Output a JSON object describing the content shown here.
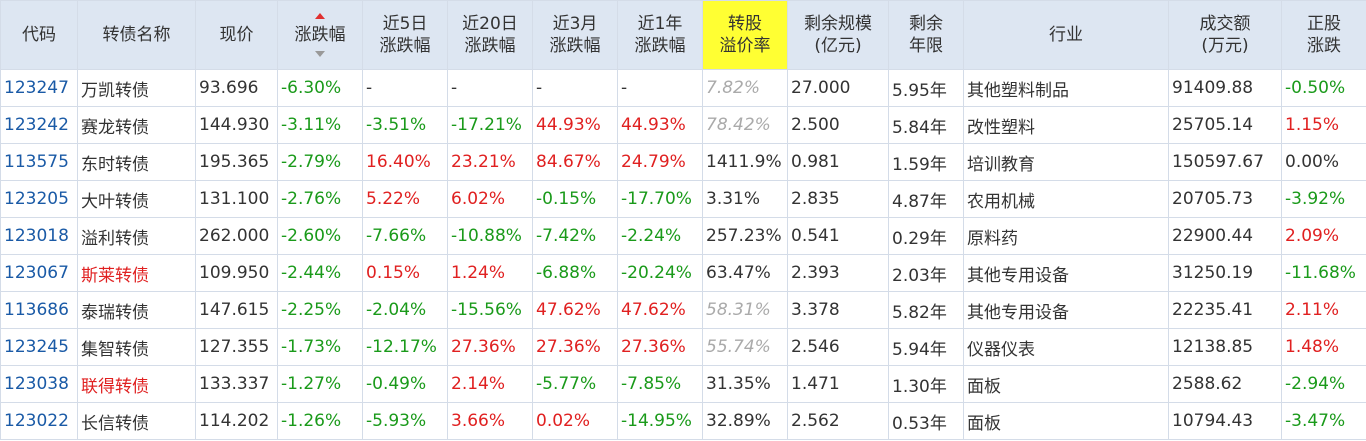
{
  "colors": {
    "header_bg": "#dde6f2",
    "highlight": "#ffff33",
    "up": "#e02020",
    "down": "#1a9a1a",
    "code": "#1a5aa6",
    "muted": "#aaaaaa"
  },
  "headers": {
    "code": "代码",
    "name": "转债名称",
    "price": "现价",
    "chg": "涨跌幅",
    "d5_1": "近5日",
    "d5_2": "涨跌幅",
    "d20_1": "近20日",
    "d20_2": "涨跌幅",
    "m3_1": "近3月",
    "m3_2": "涨跌幅",
    "y1_1": "近1年",
    "y1_2": "涨跌幅",
    "prem_1": "转股",
    "prem_2": "溢价率",
    "scale_1": "剩余规模",
    "scale_2": "(亿元)",
    "years_1": "剩余",
    "years_2": "年限",
    "industry": "行业",
    "vol_1": "成交额",
    "vol_2": "(万元)",
    "stock_1": "正股",
    "stock_2": "涨跌"
  },
  "sort_icon": "sort-desc-icon",
  "rows": [
    {
      "code": "123247",
      "name": "万凯转债",
      "price": "93.696",
      "chg": "-6.30%",
      "d5": "-",
      "d20": "-",
      "m3": "-",
      "y1": "-",
      "prem": "7.82%",
      "scale": "27.000",
      "years": "5.95年",
      "industry": "其他塑料制品",
      "vol": "91409.88",
      "stock": "-0.50%"
    },
    {
      "code": "123242",
      "name": "赛龙转债",
      "price": "144.930",
      "chg": "-3.11%",
      "d5": "-3.51%",
      "d20": "-17.21%",
      "m3": "44.93%",
      "y1": "44.93%",
      "prem": "78.42%",
      "scale": "2.500",
      "years": "5.84年",
      "industry": "改性塑料",
      "vol": "25705.14",
      "stock": "1.15%"
    },
    {
      "code": "113575",
      "name": "东时转债",
      "price": "195.365",
      "chg": "-2.79%",
      "d5": "16.40%",
      "d20": "23.21%",
      "m3": "84.67%",
      "y1": "24.79%",
      "prem": "1411.9%",
      "scale": "0.981",
      "years": "1.59年",
      "industry": "培训教育",
      "vol": "150597.67",
      "stock": "0.00%"
    },
    {
      "code": "123205",
      "name": "大叶转债",
      "price": "131.100",
      "chg": "-2.76%",
      "d5": "5.22%",
      "d20": "6.02%",
      "m3": "-0.15%",
      "y1": "-17.70%",
      "prem": "3.31%",
      "scale": "2.835",
      "years": "4.87年",
      "industry": "农用机械",
      "vol": "20705.73",
      "stock": "-3.92%"
    },
    {
      "code": "123018",
      "name": "溢利转债",
      "price": "262.000",
      "chg": "-2.60%",
      "d5": "-7.66%",
      "d20": "-10.88%",
      "m3": "-7.42%",
      "y1": "-2.24%",
      "prem": "257.23%",
      "scale": "0.541",
      "years": "0.29年",
      "industry": "原料药",
      "vol": "22900.44",
      "stock": "2.09%"
    },
    {
      "code": "123067",
      "name": "斯莱转债",
      "price": "109.950",
      "chg": "-2.44%",
      "d5": "0.15%",
      "d20": "1.24%",
      "m3": "-6.88%",
      "y1": "-20.24%",
      "prem": "63.47%",
      "scale": "2.393",
      "years": "2.03年",
      "industry": "其他专用设备",
      "vol": "31250.19",
      "stock": "-11.68%"
    },
    {
      "code": "113686",
      "name": "泰瑞转债",
      "price": "147.615",
      "chg": "-2.25%",
      "d5": "-2.04%",
      "d20": "-15.56%",
      "m3": "47.62%",
      "y1": "47.62%",
      "prem": "58.31%",
      "scale": "3.378",
      "years": "5.82年",
      "industry": "其他专用设备",
      "vol": "22235.41",
      "stock": "2.11%"
    },
    {
      "code": "123245",
      "name": "集智转债",
      "price": "127.355",
      "chg": "-1.73%",
      "d5": "-12.17%",
      "d20": "27.36%",
      "m3": "27.36%",
      "y1": "27.36%",
      "prem": "55.74%",
      "scale": "2.546",
      "years": "5.94年",
      "industry": "仪器仪表",
      "vol": "12138.85",
      "stock": "1.48%"
    },
    {
      "code": "123038",
      "name": "联得转债",
      "price": "133.337",
      "chg": "-1.27%",
      "d5": "-0.49%",
      "d20": "2.14%",
      "m3": "-5.77%",
      "y1": "-7.85%",
      "prem": "31.35%",
      "scale": "1.471",
      "years": "1.30年",
      "industry": "面板",
      "vol": "2588.62",
      "stock": "-2.94%"
    },
    {
      "code": "123022",
      "name": "长信转债",
      "price": "114.202",
      "chg": "-1.26%",
      "d5": "-5.93%",
      "d20": "3.66%",
      "m3": "0.02%",
      "y1": "-14.95%",
      "prem": "32.89%",
      "scale": "2.562",
      "years": "0.53年",
      "industry": "面板",
      "vol": "10794.43",
      "stock": "-3.47%"
    }
  ]
}
